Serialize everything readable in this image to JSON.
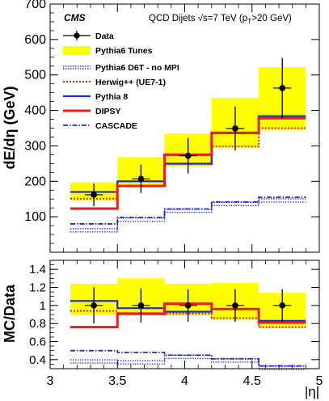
{
  "chart_data": [
    {
      "type": "step",
      "experiment": "CMS",
      "header_text": "QCD Dijets  √s=7 TeV (p",
      "header_sub": "T",
      "header_tail": ">20 GeV)",
      "ylabel": "dE/dη (GeV)",
      "xlim": [
        3.0,
        5.0
      ],
      "ylim": [
        0,
        700
      ],
      "yticks": [
        100,
        200,
        300,
        400,
        500,
        600,
        700
      ],
      "bin_edges": [
        3.15,
        3.5,
        3.85,
        4.2,
        4.55,
        4.9
      ],
      "data": {
        "name": "Data",
        "x": [
          3.325,
          3.675,
          4.025,
          4.375,
          4.725
        ],
        "y": [
          162,
          207,
          272,
          349,
          463
        ],
        "err": [
          32,
          40,
          50,
          62,
          85
        ]
      },
      "tunes_band": {
        "name": "Pythia6 Tunes",
        "low": [
          145,
          188,
          242,
          295,
          345
        ],
        "high": [
          197,
          268,
          335,
          435,
          522
        ]
      },
      "series": [
        {
          "name": "Pythia6 D6T - no MPI",
          "values": [
            62,
            92,
            117,
            136,
            146
          ],
          "color": "#3b3bd6",
          "style": "dotted-band"
        },
        {
          "name": "Herwig++ (UE7-1)",
          "values": [
            151,
            186,
            248,
            298,
            350
          ],
          "color": "#e81c1c",
          "style": "dotted"
        },
        {
          "name": "Pythia 8",
          "values": [
            170,
            200,
            250,
            336,
            384
          ],
          "color": "#1c2bd6",
          "style": "solid"
        },
        {
          "name": "DIPSY",
          "values": [
            123,
            187,
            275,
            337,
            378
          ],
          "color": "#e81c1c",
          "style": "solid-thick"
        },
        {
          "name": "CASCADE",
          "values": [
            80,
            98,
            122,
            142,
            155
          ],
          "color": "#1c2bd6",
          "style": "dashdot"
        }
      ]
    },
    {
      "type": "step",
      "ylabel": "MC/Data",
      "xlabel": "|η|",
      "xlim": [
        3.0,
        5.0
      ],
      "ylim": [
        0.3,
        1.5
      ],
      "yticks": [
        0.4,
        0.6,
        0.8,
        1.0,
        1.2,
        1.4
      ],
      "ytick_labels": [
        "0.4",
        "0.6",
        "0.8",
        "1",
        "1.2",
        "1.4"
      ],
      "xticks": [
        3.0,
        3.5,
        4.0,
        4.5,
        5.0
      ],
      "xtick_labels": [
        "3",
        "3.5",
        "4",
        "4.5",
        "5"
      ],
      "bin_edges": [
        3.15,
        3.5,
        3.85,
        4.2,
        4.55,
        4.9
      ],
      "data": {
        "name": "Data",
        "x": [
          3.325,
          3.675,
          4.025,
          4.375,
          4.725
        ],
        "y": [
          1.0,
          1.0,
          1.0,
          1.0,
          1.0
        ],
        "err": [
          0.2,
          0.19,
          0.18,
          0.18,
          0.18
        ]
      },
      "tunes_band": {
        "name": "Pythia6 Tunes",
        "low": [
          0.9,
          0.91,
          0.89,
          0.84,
          0.75
        ],
        "high": [
          1.24,
          1.3,
          1.24,
          1.25,
          1.14
        ]
      },
      "series": [
        {
          "name": "Pythia6 D6T - no MPI",
          "values": [
            0.38,
            0.37,
            0.43,
            0.39,
            0.31
          ],
          "color": "#3b3bd6",
          "style": "dotted-band"
        },
        {
          "name": "Herwig++ (UE7-1)",
          "values": [
            0.94,
            0.9,
            0.91,
            0.86,
            0.76
          ],
          "color": "#e81c1c",
          "style": "dotted"
        },
        {
          "name": "Pythia 8",
          "values": [
            1.05,
            0.97,
            0.93,
            0.96,
            0.83
          ],
          "color": "#1c2bd6",
          "style": "solid"
        },
        {
          "name": "DIPSY",
          "values": [
            0.76,
            0.91,
            1.02,
            0.96,
            0.81
          ],
          "color": "#e81c1c",
          "style": "solid-thick"
        },
        {
          "name": "CASCADE",
          "values": [
            0.5,
            0.48,
            0.45,
            0.41,
            0.33
          ],
          "color": "#1c2bd6",
          "style": "dashdot"
        }
      ]
    }
  ]
}
